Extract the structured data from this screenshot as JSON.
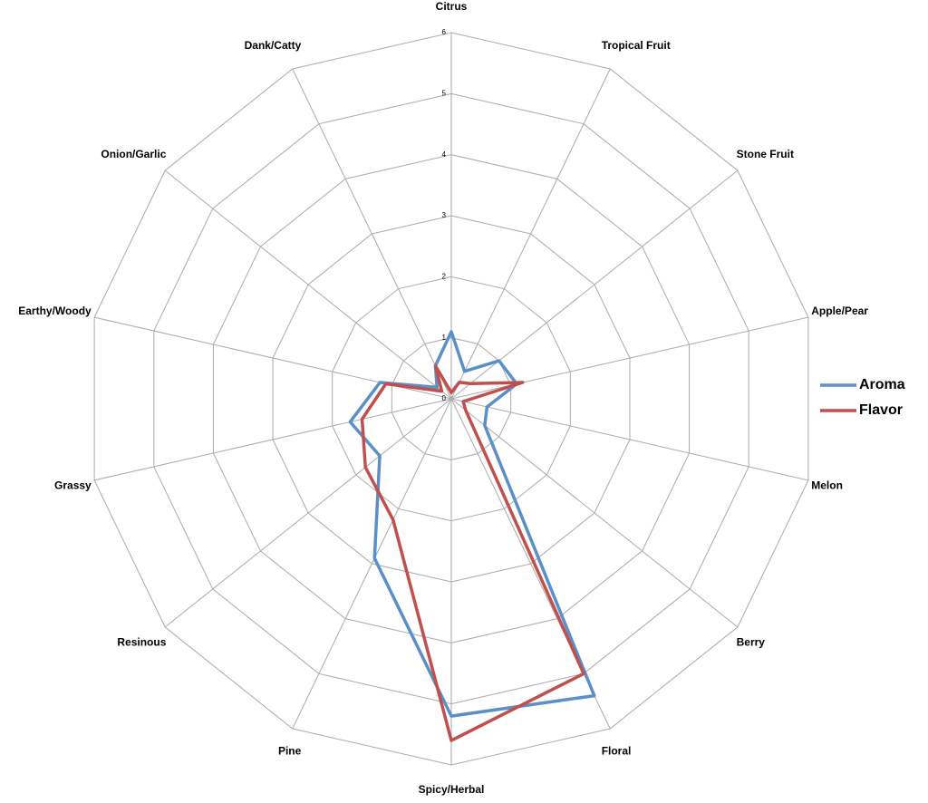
{
  "chart_data": {
    "type": "radar",
    "categories": [
      "Citrus",
      "Tropical Fruit",
      "Stone Fruit",
      "Apple/Pear",
      "Melon",
      "Berry",
      "Floral",
      "Spicy/Herbal",
      "Pine",
      "Resinous",
      "Grassy",
      "Earthy/Woody",
      "Onion/Garlic",
      "Dank/Catty"
    ],
    "series": [
      {
        "name": "Aroma",
        "color": "#5b8fc7",
        "values": [
          1.1,
          0.5,
          1.0,
          1.1,
          0.6,
          0.7,
          5.4,
          5.2,
          2.9,
          1.5,
          1.7,
          1.2,
          0.3,
          0.6
        ]
      },
      {
        "name": "Flavor",
        "color": "#c0504d",
        "values": [
          0.1,
          0.3,
          0.4,
          1.2,
          0.2,
          0.3,
          5.0,
          5.6,
          2.2,
          1.8,
          1.5,
          1.1,
          0.2,
          0.6
        ]
      }
    ],
    "rlim": [
      0,
      6
    ],
    "rticks": [
      0,
      1,
      2,
      3,
      4,
      5,
      6
    ],
    "grid": true,
    "legend": "right"
  }
}
